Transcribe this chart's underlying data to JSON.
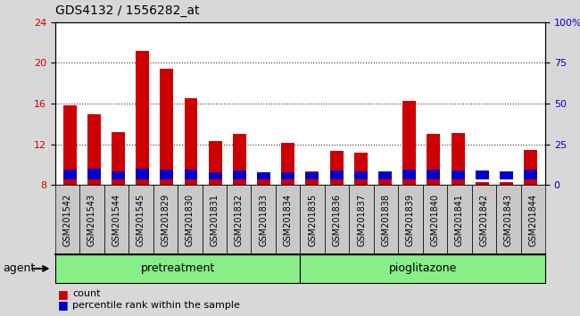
{
  "title": "GDS4132 / 1556282_at",
  "samples": [
    "GSM201542",
    "GSM201543",
    "GSM201544",
    "GSM201545",
    "GSM201829",
    "GSM201830",
    "GSM201831",
    "GSM201832",
    "GSM201833",
    "GSM201834",
    "GSM201835",
    "GSM201836",
    "GSM201837",
    "GSM201838",
    "GSM201839",
    "GSM201840",
    "GSM201841",
    "GSM201842",
    "GSM201843",
    "GSM201844"
  ],
  "count_values": [
    15.8,
    14.9,
    13.2,
    21.2,
    19.4,
    16.5,
    12.3,
    13.0,
    9.2,
    12.1,
    9.3,
    11.3,
    11.2,
    9.0,
    16.3,
    13.0,
    13.1,
    8.3,
    8.3,
    11.4
  ],
  "percentile_values": [
    1.0,
    1.1,
    0.8,
    1.1,
    1.0,
    1.0,
    0.7,
    0.9,
    0.7,
    0.7,
    0.7,
    0.9,
    0.8,
    0.8,
    1.0,
    1.0,
    0.9,
    0.9,
    0.8,
    1.0
  ],
  "ymin": 8,
  "ymax": 24,
  "yticks": [
    8,
    12,
    16,
    20,
    24
  ],
  "y2ticks": [
    0,
    25,
    50,
    75,
    100
  ],
  "count_color": "#cc0000",
  "percentile_color": "#0000cc",
  "group1_label": "pretreatment",
  "group2_label": "pioglitazone",
  "group1_count": 10,
  "group2_count": 10,
  "legend_count_label": "count",
  "legend_percentile_label": "percentile rank within the sample",
  "background_color": "#d8d8d8",
  "plot_bg_color": "#ffffff",
  "group_bg_color": "#88ee88",
  "xtick_bg_color": "#c8c8c8",
  "title_fontsize": 10,
  "tick_fontsize": 7,
  "bar_width": 0.55
}
